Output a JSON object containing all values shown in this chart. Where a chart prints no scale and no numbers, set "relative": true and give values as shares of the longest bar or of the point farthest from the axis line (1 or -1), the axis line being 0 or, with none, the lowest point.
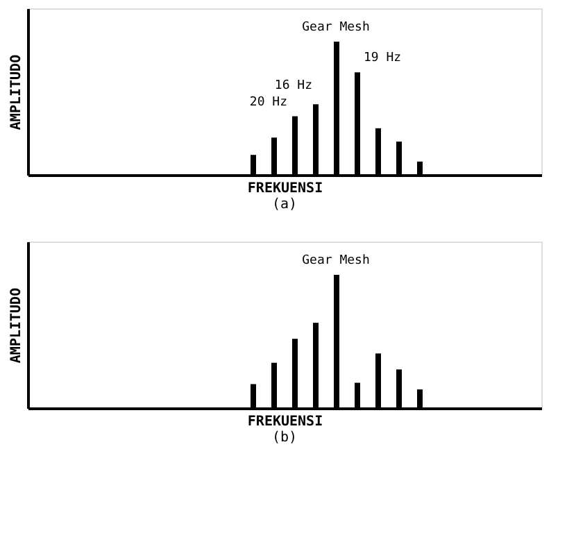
{
  "chart_data": [
    {
      "type": "bar",
      "relative": true,
      "xlabel": "FREKUENSI",
      "ylabel": "AMPLITUDO",
      "tick_labels": false,
      "grid": false,
      "categories": [
        null,
        null,
        null,
        null,
        null,
        null,
        null,
        null,
        null
      ],
      "series": [
        {
          "color": "#000000",
          "values": [
            0.15,
            0.28,
            0.44,
            0.53,
            1,
            0.77,
            0.35,
            0.25,
            0.1
          ]
        }
      ],
      "annotations": [
        "Gear Mesh",
        "20 Hz",
        "16 Hz",
        "19 Hz",
        "(a)"
      ]
    },
    {
      "type": "bar",
      "relative": true,
      "xlabel": "FREKUENSI",
      "ylabel": "AMPLITUDO",
      "tick_labels": false,
      "grid": false,
      "categories": [
        null,
        null,
        null,
        null,
        null,
        null,
        null,
        null,
        null
      ],
      "series": [
        {
          "color": "#000000",
          "values": [
            0.18,
            0.34,
            0.52,
            0.64,
            1,
            0.19,
            0.41,
            0.29,
            0.14
          ]
        }
      ],
      "annotations": [
        "Gear Mesh",
        "(b)"
      ]
    }
  ]
}
